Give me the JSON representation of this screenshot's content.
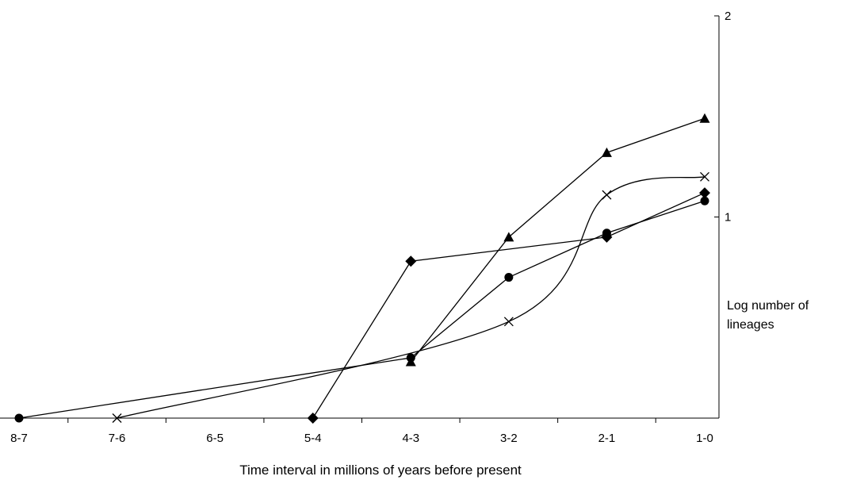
{
  "chart_data": {
    "type": "line",
    "title": "",
    "xlabel": "Time interval in millions of years before present",
    "ylabel_lines": [
      "Log number of",
      "lineages"
    ],
    "categories": [
      "8-7",
      "7-6",
      "6-5",
      "5-4",
      "4-3",
      "3-2",
      "2-1",
      "1-0"
    ],
    "ylim": [
      0,
      2
    ],
    "yticks": [
      {
        "value": 1,
        "label": "1"
      },
      {
        "value": 2,
        "label": "2"
      }
    ],
    "y_axis_side": "right",
    "grid": false,
    "legend": "none",
    "series": [
      {
        "marker": "circle",
        "smooth": false,
        "values": [
          0,
          null,
          null,
          null,
          0.3,
          0.7,
          0.92,
          1.08
        ]
      },
      {
        "marker": "cross",
        "smooth": true,
        "values": [
          null,
          0,
          null,
          null,
          null,
          0.48,
          1.11,
          1.2
        ]
      },
      {
        "marker": "diamond",
        "smooth": false,
        "values": [
          null,
          null,
          null,
          0,
          0.78,
          null,
          0.9,
          1.12
        ]
      },
      {
        "marker": "triangle",
        "smooth": false,
        "values": [
          null,
          null,
          null,
          null,
          0.28,
          0.9,
          1.32,
          1.49
        ]
      }
    ]
  }
}
